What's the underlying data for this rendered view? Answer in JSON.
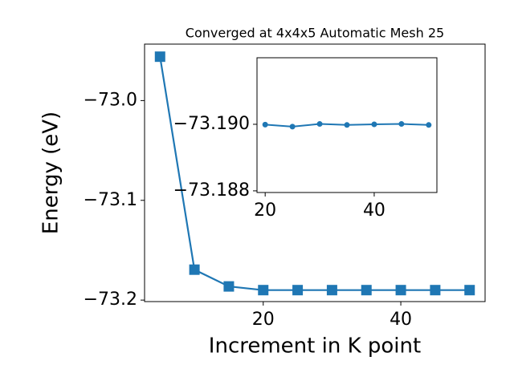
{
  "chart_data": [
    {
      "type": "line",
      "title": "Converged at 4x4x5 Automatic Mesh 25",
      "x_label": "Increment in K point",
      "y_label": "Energy (eV)",
      "x": [
        5,
        10,
        15,
        20,
        25,
        30,
        35,
        40,
        45,
        50
      ],
      "series": [
        {
          "color": "#1f77b4",
          "marker": "square",
          "values": [
            -72.956,
            -73.1695,
            -73.1863,
            -73.19,
            -73.19,
            -73.19,
            -73.19,
            -73.19,
            -73.19,
            -73.19
          ]
        }
      ],
      "xlim": [
        2.75,
        52.25
      ],
      "xticks": [
        20,
        40
      ],
      "ylim": [
        -73.2015,
        -72.9434
      ],
      "yticks": [
        {
          "value": -73.0,
          "label": "−73.0"
        },
        {
          "value": -73.1,
          "label": "−73.1"
        },
        {
          "value": -73.2,
          "label": "−73.2"
        }
      ]
    },
    {
      "type": "line",
      "x": [
        20,
        25,
        30,
        35,
        40,
        45,
        50
      ],
      "series": [
        {
          "color": "#1f77b4",
          "marker": "circle",
          "values": [
            -73.18999,
            -73.18993,
            -73.19001,
            -73.18998,
            -73.19,
            -73.19001,
            -73.18998
          ]
        }
      ],
      "xlim": [
        18.5,
        51.5
      ],
      "xticks": [
        20,
        40
      ],
      "ylim": [
        -73.18795,
        -73.192
      ],
      "yticks": [
        {
          "value": -73.19,
          "label": "−73.190"
        },
        {
          "value": -73.188,
          "label": "−73.188"
        }
      ]
    }
  ]
}
